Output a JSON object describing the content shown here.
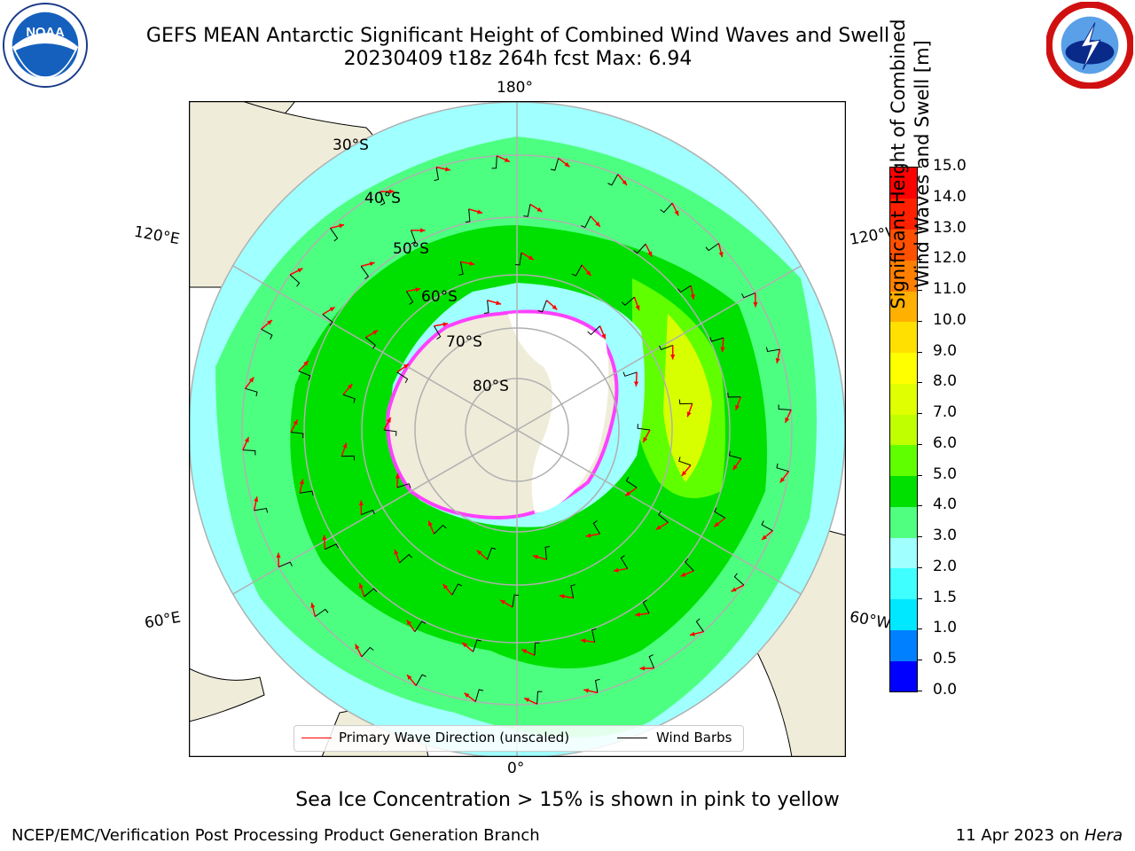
{
  "header": {
    "title_line1": "GEFS MEAN Antarctic Significant Height of Combined Wind Waves and Swell",
    "title_line2": "20230409 t18z 264h fcst   Max: 6.94"
  },
  "logos": {
    "left": {
      "icon": "noaa-logo-icon",
      "text": "NOAA"
    },
    "right": {
      "icon": "nws-logo-icon"
    }
  },
  "map": {
    "projection": "south-polar-stereographic",
    "longitude_labels": {
      "top": "180°",
      "bottom": "0°",
      "upper_left": "120°E",
      "upper_right": "120°W",
      "lower_left": "60°E",
      "lower_right": "60°W"
    },
    "latitude_labels": [
      "30°S",
      "40°S",
      "50°S",
      "60°S",
      "70°S",
      "80°S"
    ],
    "legend": {
      "items": [
        {
          "label": "Primary Wave Direction (unscaled)",
          "color": "#ff0000"
        },
        {
          "label": "Wind Barbs",
          "color": "#000000"
        }
      ]
    },
    "colors": {
      "land": "#efecd9",
      "ice": "#ffffff",
      "ocean_low": "#a0ffff",
      "ocean_mid": "#4dff80",
      "ocean_high": "#00e000",
      "arrow": "#ff0000",
      "grid": "#b0b0b0"
    }
  },
  "colorbar": {
    "label_line1": "Significant Height of Combined",
    "label_line2": "Wind Waves and Swell [m]",
    "ticks": [
      "0.0",
      "0.5",
      "1.0",
      "1.5",
      "2.0",
      "3.0",
      "4.0",
      "5.0",
      "6.0",
      "7.0",
      "8.0",
      "9.0",
      "10.0",
      "11.0",
      "12.0",
      "13.0",
      "14.0",
      "15.0"
    ],
    "colors": [
      "#0000ff",
      "#0080ff",
      "#00e8ff",
      "#40ffff",
      "#a0ffff",
      "#50ff80",
      "#00e000",
      "#60ff00",
      "#c0ff00",
      "#e0ff00",
      "#ffff00",
      "#ffe000",
      "#ffb000",
      "#ff8000",
      "#ff5000",
      "#ff2000",
      "#ff0000"
    ]
  },
  "subtitle": "Sea Ice Concentration > 15% is shown in pink to yellow",
  "footer": {
    "left": "NCEP/EMC/Verification Post Processing Product Generation Branch",
    "right_date": "11 Apr 2023 on ",
    "right_host": "Hera"
  }
}
